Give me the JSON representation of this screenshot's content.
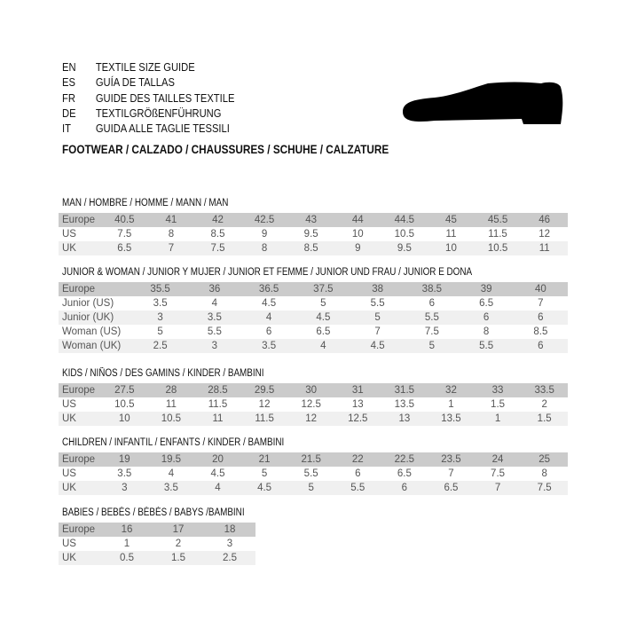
{
  "languages": [
    {
      "code": "EN",
      "title": "TEXTILE SIZE GUIDE"
    },
    {
      "code": "ES",
      "title": "GUÍA DE TALLAS"
    },
    {
      "code": "FR",
      "title": "GUIDE DES TAILLES TEXTILE"
    },
    {
      "code": "DE",
      "title": "TEXTILGRÖßENFÜHRUNG"
    },
    {
      "code": "IT",
      "title": "GUIDA ALLE TAGLIE TESSILI"
    }
  ],
  "footwear_heading": "FOOTWEAR / CALZADO / CHAUSSURES / SCHUHE / CALZATURE",
  "icon": "shoe-icon",
  "colors": {
    "header_row": "#cbcbcb",
    "alt_row": "#f0f0f0"
  },
  "sections": [
    {
      "title": "MAN / HOMBRE / HOMME / MANN / MAN",
      "rows": [
        {
          "label": "Europe",
          "values": [
            "40.5",
            "41",
            "42",
            "42.5",
            "43",
            "44",
            "44.5",
            "45",
            "45.5",
            "46"
          ]
        },
        {
          "label": "US",
          "values": [
            "7.5",
            "8",
            "8.5",
            "9",
            "9.5",
            "10",
            "10.5",
            "11",
            "11.5",
            "12"
          ]
        },
        {
          "label": "UK",
          "values": [
            "6.5",
            "7",
            "7.5",
            "8",
            "8.5",
            "9",
            "9.5",
            "10",
            "10.5",
            "11"
          ]
        }
      ]
    },
    {
      "title": "JUNIOR & WOMAN / JUNIOR Y MUJER / JUNIOR ET FEMME / JUNIOR UND FRAU / JUNIOR E DONA",
      "rows": [
        {
          "label": "Europe",
          "values": [
            "35.5",
            "36",
            "36.5",
            "37.5",
            "38",
            "38.5",
            "39",
            "40"
          ]
        },
        {
          "label": "Junior (US)",
          "values": [
            "3.5",
            "4",
            "4.5",
            "5",
            "5.5",
            "6",
            "6.5",
            "7"
          ]
        },
        {
          "label": "Junior (UK)",
          "values": [
            "3",
            "3.5",
            "4",
            "4.5",
            "5",
            "5.5",
            "6",
            "6"
          ]
        },
        {
          "label": "Woman (US)",
          "values": [
            "5",
            "5.5",
            "6",
            "6.5",
            "7",
            "7.5",
            "8",
            "8.5"
          ]
        },
        {
          "label": "Woman (UK)",
          "values": [
            "2.5",
            "3",
            "3.5",
            "4",
            "4.5",
            "5",
            "5.5",
            "6"
          ]
        }
      ]
    },
    {
      "title": "KIDS / NIÑOS / DES GAMINS / KINDER / BAMBINI",
      "rows": [
        {
          "label": "Europe",
          "values": [
            "27.5",
            "28",
            "28.5",
            "29.5",
            "30",
            "31",
            "31.5",
            "32",
            "33",
            "33.5"
          ]
        },
        {
          "label": "US",
          "values": [
            "10.5",
            "11",
            "11.5",
            "12",
            "12.5",
            "13",
            "13.5",
            "1",
            "1.5",
            "2"
          ]
        },
        {
          "label": "UK",
          "values": [
            "10",
            "10.5",
            "11",
            "11.5",
            "12",
            "12.5",
            "13",
            "13.5",
            "1",
            "1.5"
          ]
        }
      ]
    },
    {
      "title": "CHILDREN / INFANTIL / ENFANTS / KINDER / BAMBINI",
      "rows": [
        {
          "label": "Europe",
          "values": [
            "19",
            "19.5",
            "20",
            "21",
            "21.5",
            "22",
            "22.5",
            "23.5",
            "24",
            "25"
          ]
        },
        {
          "label": "US",
          "values": [
            "3.5",
            "4",
            "4.5",
            "5",
            "5.5",
            "6",
            "6.5",
            "7",
            "7.5",
            "8"
          ]
        },
        {
          "label": "UK",
          "values": [
            "3",
            "3.5",
            "4",
            "4.5",
            "5",
            "5.5",
            "6",
            "6.5",
            "7",
            "7.5"
          ]
        }
      ]
    },
    {
      "title": "BABIES  / BEBÉS / BÉBÉS / BABYS /BAMBINI",
      "rows": [
        {
          "label": "Europe",
          "values": [
            "16",
            "17",
            "18"
          ]
        },
        {
          "label": "US",
          "values": [
            "1",
            "2",
            "3"
          ]
        },
        {
          "label": "UK",
          "values": [
            "0.5",
            "1.5",
            "2.5"
          ]
        }
      ]
    }
  ]
}
